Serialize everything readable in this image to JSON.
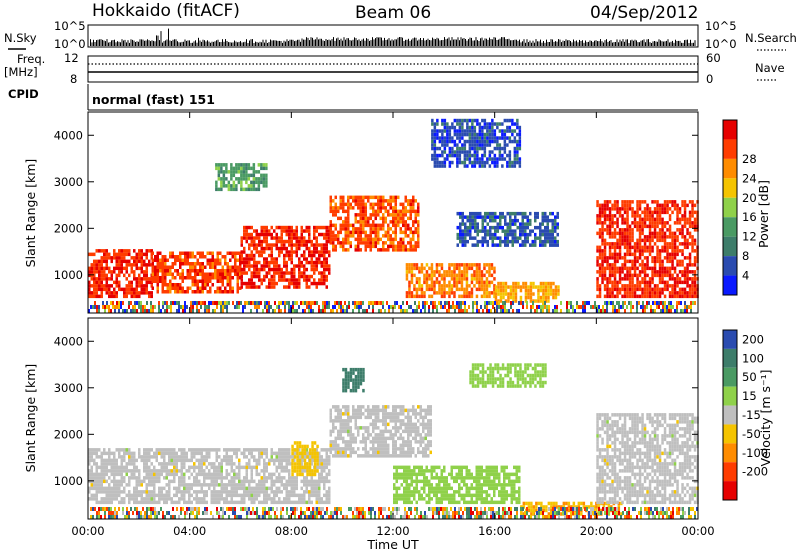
{
  "header": {
    "station": "Hokkaido (fitACF)",
    "beam": "Beam 06",
    "date": "04/Sep/2012"
  },
  "panels": {
    "nsky_label": "N.Sky",
    "nsky_ticks": [
      "10^5",
      "10^0"
    ],
    "nsearch_label": "N.Search",
    "freq_label_1": "Freq.",
    "freq_label_2": "[MHz]",
    "freq_ticks": [
      "12",
      "8"
    ],
    "nave_label": "Nave",
    "nave_ticks": [
      "60",
      "0"
    ],
    "cpid_label": "CPID",
    "cpid_value": "normal (fast) 151"
  },
  "colors": {
    "power_scale": [
      "#0a1aff",
      "#2a4bb0",
      "#3d7d6a",
      "#4a9a63",
      "#8fd14a",
      "#f5c400",
      "#ff8c00",
      "#ff3c00",
      "#e60000"
    ],
    "velocity_scale": [
      "#2a4bb0",
      "#3d7d6a",
      "#4a9a63",
      "#8fd14a",
      "#bfbfbf",
      "#f5c400",
      "#ff8c00",
      "#ff3c00",
      "#e60000"
    ],
    "ground_scatter": "#bfbfbf"
  },
  "chart_data": [
    {
      "type": "heatmap",
      "title": "",
      "xlabel": "Time UT",
      "ylabel": "Slant Range [km]",
      "xlim": [
        "00:00",
        "24:00"
      ],
      "ylim": [
        180,
        4500
      ],
      "x_ticks": [
        "00:00",
        "04:00",
        "08:00",
        "12:00",
        "16:00",
        "20:00",
        "00:00"
      ],
      "y_ticks": [
        "1000",
        "2000",
        "3000",
        "4000"
      ],
      "colorbar_label": "Power [dB]",
      "colorbar_ticks": [
        "4",
        "8",
        "12",
        "16",
        "20",
        "24",
        "28"
      ],
      "colorbar_range": [
        0,
        32
      ],
      "regions": [
        {
          "t0": 0.0,
          "t1": 2.5,
          "r0": 500,
          "r1": 1500,
          "value": 28
        },
        {
          "t0": 2.5,
          "t1": 6.0,
          "r0": 600,
          "r1": 1500,
          "value": 27
        },
        {
          "t0": 6.0,
          "t1": 9.5,
          "r0": 700,
          "r1": 2000,
          "value": 28
        },
        {
          "t0": 9.5,
          "t1": 13.0,
          "r0": 1500,
          "r1": 2700,
          "value": 26
        },
        {
          "t0": 12.5,
          "t1": 16.0,
          "r0": 500,
          "r1": 1200,
          "value": 24
        },
        {
          "t0": 16.0,
          "t1": 18.5,
          "r0": 400,
          "r1": 800,
          "value": 22
        },
        {
          "t0": 14.5,
          "t1": 18.5,
          "r0": 1600,
          "r1": 2300,
          "value": 6
        },
        {
          "t0": 13.5,
          "t1": 17.0,
          "r0": 3300,
          "r1": 4300,
          "value": 5
        },
        {
          "t0": 20.0,
          "t1": 24.0,
          "r0": 500,
          "r1": 2600,
          "value": 28
        },
        {
          "t0": 5.0,
          "t1": 7.0,
          "r0": 2800,
          "r1": 3400,
          "value": 12
        }
      ]
    },
    {
      "type": "heatmap",
      "title": "",
      "xlabel": "Time UT",
      "ylabel": "Slant Range [km]",
      "xlim": [
        "00:00",
        "24:00"
      ],
      "ylim": [
        180,
        4500
      ],
      "x_ticks": [
        "00:00",
        "04:00",
        "08:00",
        "12:00",
        "16:00",
        "20:00",
        "00:00"
      ],
      "y_ticks": [
        "1000",
        "2000",
        "3000",
        "4000"
      ],
      "colorbar_label": "Velocity [m s⁻¹]",
      "colorbar_ticks": [
        "200",
        "100",
        "50",
        "15",
        "-15",
        "-50",
        "-100",
        "-200"
      ],
      "colorbar_range": [
        -250,
        250
      ],
      "regions": [
        {
          "t0": 0.0,
          "t1": 9.5,
          "r0": 500,
          "r1": 1700,
          "value": 0
        },
        {
          "t0": 9.5,
          "t1": 13.5,
          "r0": 1500,
          "r1": 2600,
          "value": 0
        },
        {
          "t0": 12.0,
          "t1": 17.0,
          "r0": 500,
          "r1": 1300,
          "value": 40
        },
        {
          "t0": 17.0,
          "t1": 21.0,
          "r0": 250,
          "r1": 500,
          "value": -80
        },
        {
          "t0": 20.0,
          "t1": 24.0,
          "r0": 500,
          "r1": 2400,
          "value": 0
        },
        {
          "t0": 10.0,
          "t1": 10.8,
          "r0": 2900,
          "r1": 3400,
          "value": 150
        },
        {
          "t0": 8.0,
          "t1": 9.0,
          "r0": 1100,
          "r1": 1800,
          "value": -60
        },
        {
          "t0": 15.0,
          "t1": 18.0,
          "r0": 3000,
          "r1": 3500,
          "value": 40
        }
      ]
    }
  ]
}
